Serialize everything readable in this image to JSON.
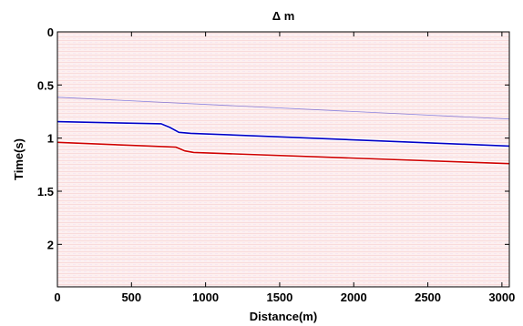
{
  "chart_data": {
    "type": "heatmap",
    "title": "Δ m",
    "xlabel": "Distance(m)",
    "ylabel": "Time(s)",
    "xlim": [
      0,
      3050
    ],
    "ylim": [
      2.4,
      0
    ],
    "x_ticks": [
      0,
      500,
      1000,
      1500,
      2000,
      2500,
      3000
    ],
    "y_ticks": [
      0,
      0.5,
      1,
      1.5,
      2
    ],
    "x_tick_labels": [
      "0",
      "500",
      "1000",
      "1500",
      "2000",
      "2500",
      "3000"
    ],
    "y_tick_labels": [
      "0",
      "0.5",
      "1",
      "1.5",
      "2"
    ],
    "grid": false,
    "colormap": {
      "negative": "#0000c8",
      "zero": "#ffffff",
      "positive": "#d00000",
      "background_tint": "#fdeeee"
    },
    "events": [
      {
        "polarity": "negative",
        "strength": "strong",
        "points": [
          [
            0,
            0.845
          ],
          [
            700,
            0.865
          ],
          [
            760,
            0.9
          ],
          [
            820,
            0.945
          ],
          [
            900,
            0.955
          ],
          [
            3050,
            1.075
          ]
        ]
      },
      {
        "polarity": "positive",
        "strength": "strong",
        "points": [
          [
            0,
            1.04
          ],
          [
            800,
            1.085
          ],
          [
            860,
            1.12
          ],
          [
            920,
            1.135
          ],
          [
            3050,
            1.24
          ]
        ]
      },
      {
        "polarity": "negative",
        "strength": "faint",
        "points": [
          [
            0,
            0.615
          ],
          [
            3050,
            0.82
          ]
        ]
      }
    ]
  }
}
